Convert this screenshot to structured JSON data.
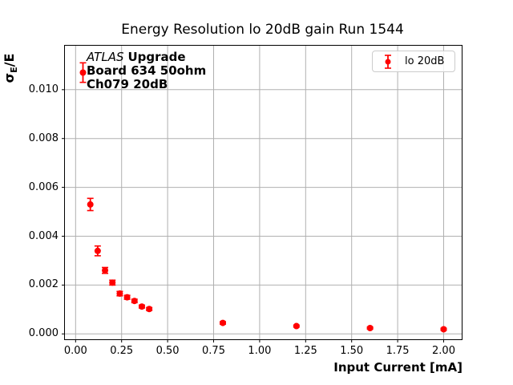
{
  "title": "Energy Resolution lo 20dB gain Run 1544",
  "annotation": {
    "line1_italic": "ATLAS",
    "line1_bold": "Upgrade",
    "line2": "Board 634 50ohm",
    "line3": "Ch079 20dB"
  },
  "legend": {
    "label": "lo 20dB"
  },
  "axes": {
    "xlabel": "Input Current [mA]",
    "ylabel_sigma": "σ",
    "ylabel_subscript": "E",
    "ylabel_suffix": "/E"
  },
  "colors": {
    "series": "#ff0000",
    "grid": "#b0b0b0",
    "spine": "#000000",
    "legend_border": "#cccccc",
    "text": "#000000"
  },
  "chart_data": {
    "type": "scatter",
    "title": "Energy Resolution lo 20dB gain Run 1544",
    "xlabel": "Input Current [mA]",
    "ylabel": "σE/E",
    "grid": true,
    "legend_position": "upper right",
    "xlim": [
      -0.058,
      2.098
    ],
    "ylim": [
      -0.00022,
      0.0118
    ],
    "xticks": [
      0.0,
      0.25,
      0.5,
      0.75,
      1.0,
      1.25,
      1.5,
      1.75,
      2.0
    ],
    "xtick_labels": [
      "0.00",
      "0.25",
      "0.50",
      "0.75",
      "1.00",
      "1.25",
      "1.50",
      "1.75",
      "2.00"
    ],
    "yticks": [
      0.0,
      0.002,
      0.004,
      0.006,
      0.008,
      0.01
    ],
    "ytick_labels": [
      "0.000",
      "0.002",
      "0.004",
      "0.006",
      "0.008",
      "0.010"
    ],
    "series": [
      {
        "name": "lo 20dB",
        "color": "#ff0000",
        "marker": "circle",
        "x": [
          0.04,
          0.08,
          0.12,
          0.16,
          0.2,
          0.24,
          0.28,
          0.32,
          0.36,
          0.4,
          0.8,
          1.2,
          1.6,
          2.0
        ],
        "y": [
          0.0107,
          0.0053,
          0.0034,
          0.0026,
          0.0021,
          0.00165,
          0.0015,
          0.00135,
          0.00112,
          0.00102,
          0.00045,
          0.00032,
          0.00024,
          0.00019
        ],
        "yerr": [
          0.0004,
          0.00025,
          0.0002,
          0.00012,
          0.0001,
          9e-05,
          8e-05,
          7e-05,
          6e-05,
          6e-05,
          5e-05,
          4e-05,
          4e-05,
          4e-05
        ]
      }
    ]
  }
}
